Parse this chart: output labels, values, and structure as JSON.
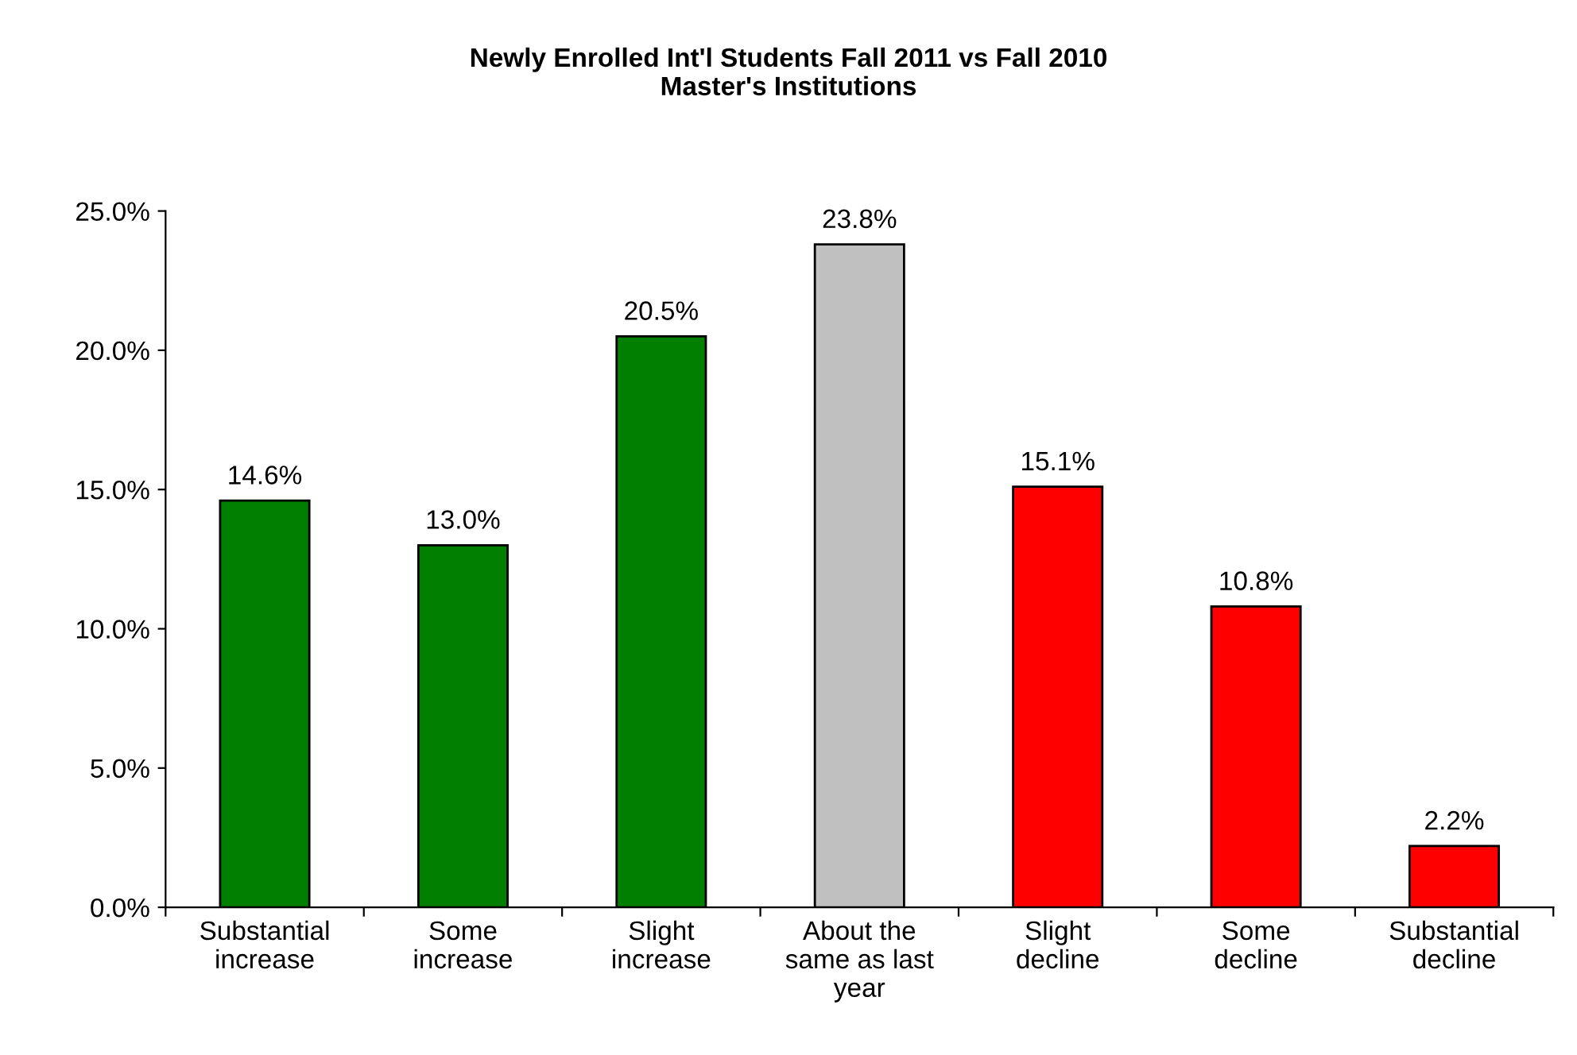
{
  "chart_data": {
    "type": "bar",
    "title": "Newly Enrolled Int'l Students Fall 2011 vs Fall 2010\nMaster's Institutions",
    "categories": [
      "Substantial\nincrease",
      "Some\nincrease",
      "Slight\nincrease",
      "About the\nsame as last\nyear",
      "Slight\ndecline",
      "Some\ndecline",
      "Substantial\ndecline"
    ],
    "values": [
      14.6,
      13.0,
      20.5,
      23.8,
      15.1,
      10.8,
      2.2
    ],
    "colors": [
      "#007f00",
      "#007f00",
      "#007f00",
      "#c0c0c0",
      "#ff0000",
      "#ff0000",
      "#ff0000"
    ],
    "value_labels": [
      "14.6%",
      "13.0%",
      "20.5%",
      "23.8%",
      "15.1%",
      "10.8%",
      "2.2%"
    ],
    "ylim": [
      0,
      25
    ],
    "yticks": [
      {
        "value": 0,
        "label": "0.0%"
      },
      {
        "value": 5,
        "label": "5.0%"
      },
      {
        "value": 10,
        "label": "10.0%"
      },
      {
        "value": 15,
        "label": "15.0%"
      },
      {
        "value": 20,
        "label": "20.0%"
      },
      {
        "value": 25,
        "label": "25.0%"
      }
    ],
    "grid": false,
    "legend": false
  }
}
